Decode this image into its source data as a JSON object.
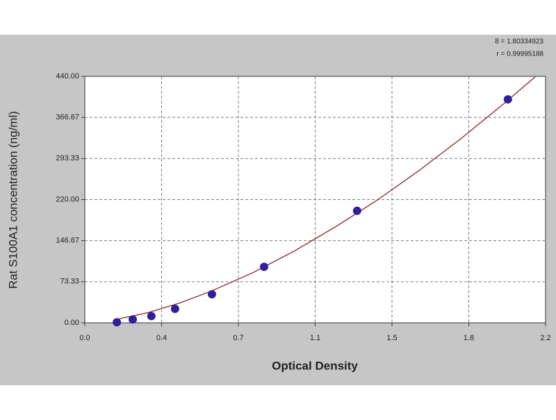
{
  "chart_data": {
    "type": "scatter",
    "xlabel": "Optical Density",
    "ylabel": "Rat S100A1 concentration (ng/ml)",
    "annotations": [
      "8 = 1.80334923",
      "r = 0.99995188"
    ],
    "xlim": [
      0,
      2.2
    ],
    "xticks": [
      {
        "value": 0,
        "label": "0.0"
      },
      {
        "value": 0.3667,
        "label": "0.4"
      },
      {
        "value": 0.7333,
        "label": "0.7"
      },
      {
        "value": 1.1,
        "label": "1.1"
      },
      {
        "value": 1.4667,
        "label": "1.5"
      },
      {
        "value": 1.8333,
        "label": "1.8"
      },
      {
        "value": 2.2,
        "label": "2.2"
      }
    ],
    "ylim": [
      0,
      440
    ],
    "yticks": [
      {
        "value": 0,
        "label": "0.00"
      },
      {
        "value": 73.33,
        "label": "73.33"
      },
      {
        "value": 146.67,
        "label": "146.67"
      },
      {
        "value": 220,
        "label": "220.00"
      },
      {
        "value": 293.33,
        "label": "293.33"
      },
      {
        "value": 366.67,
        "label": "366.67"
      },
      {
        "value": 440,
        "label": "440.00"
      }
    ],
    "grid": true,
    "points": {
      "color": "#2e1f9c",
      "x": [
        0.153,
        0.229,
        0.318,
        0.431,
        0.607,
        0.856,
        1.3,
        2.02
      ],
      "y": [
        1,
        6,
        12,
        25,
        51,
        100,
        200,
        399
      ]
    },
    "fit": {
      "color": "#8b2020",
      "x": [
        0.15,
        0.3,
        0.45,
        0.6,
        0.8,
        1.0,
        1.2,
        1.4,
        1.6,
        1.8,
        2.0,
        2.15
      ],
      "y": [
        6,
        18,
        35,
        56,
        89,
        128,
        172,
        220,
        273,
        330,
        391,
        439
      ]
    }
  }
}
